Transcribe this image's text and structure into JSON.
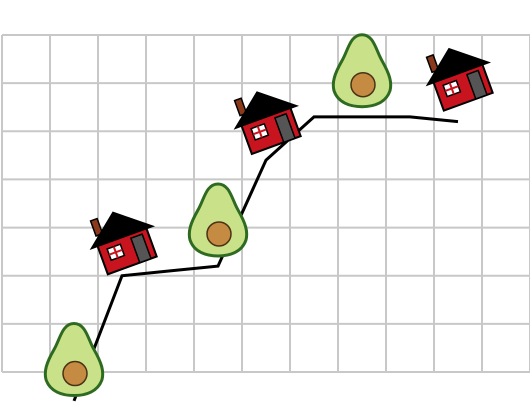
{
  "chart_data": {
    "type": "line",
    "title": "",
    "xlabel": "",
    "ylabel": "",
    "x": [
      0,
      1,
      2,
      3,
      4,
      5,
      6,
      7,
      8
    ],
    "values": [
      -0.6,
      2.0,
      2.1,
      2.2,
      4.4,
      5.3,
      5.3,
      5.3,
      5.2
    ],
    "xlim": [
      -1.5,
      9.5
    ],
    "ylim": [
      0,
      7
    ],
    "grid": true,
    "icons": [
      {
        "kind": "avocado-icon",
        "x": 0.0,
        "y": 0.3
      },
      {
        "kind": "house-icon",
        "x": 1.0,
        "y": 2.8
      },
      {
        "kind": "avocado-icon",
        "x": 3.0,
        "y": 3.2
      },
      {
        "kind": "house-icon",
        "x": 4.0,
        "y": 5.3
      },
      {
        "kind": "avocado-icon",
        "x": 6.0,
        "y": 6.3
      },
      {
        "kind": "house-icon",
        "x": 8.0,
        "y": 6.2
      }
    ],
    "colors": {
      "grid": "#c8c8c8",
      "line": "#000000",
      "avocado_skin": "#2e6b20",
      "avocado_flesh": "#c9e28a",
      "avocado_pit": "#c68b43",
      "house_wall": "#c8141e",
      "house_roof": "#000000",
      "house_door": "#555555"
    }
  }
}
